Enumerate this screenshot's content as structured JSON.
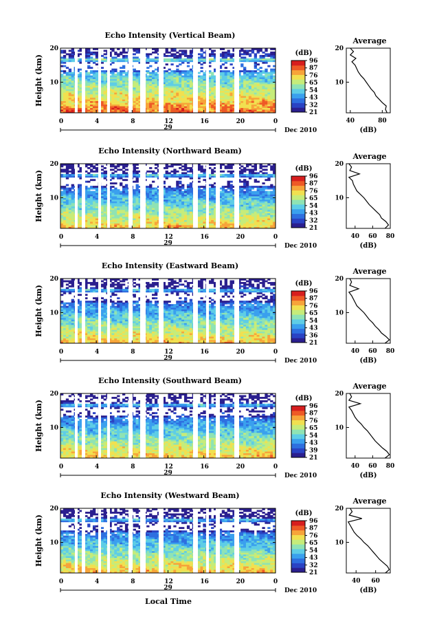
{
  "colors": {
    "colormap": [
      "#2b1f8f",
      "#2a43c4",
      "#2e6fe0",
      "#3aa0ee",
      "#5ecde6",
      "#8fe3b4",
      "#c6ec7a",
      "#f1e050",
      "#f7a43a",
      "#ee5a26",
      "#d71e1e"
    ],
    "curve": "#000000",
    "axis": "#000000",
    "gap": "#ffffff"
  },
  "figure": {
    "bottom_label": "Local Time"
  },
  "chart_data": [
    {
      "type": "heatmap",
      "title": "Echo Intensity (Vertical Beam)",
      "ylabel": "Height (km)",
      "xticks": [
        "0",
        "4",
        "8",
        "12",
        "16",
        "20",
        "0"
      ],
      "ytick_labels": [
        "20",
        "10"
      ],
      "date_day": "29",
      "date_label": "Dec 2010",
      "xlim": [
        0,
        24
      ],
      "ylim": [
        1,
        20
      ],
      "colorbar": {
        "unit": "(dB)",
        "labels": [
          "96",
          "87",
          "76",
          "65",
          "54",
          "43",
          "32",
          "21"
        ],
        "range": [
          21,
          96
        ]
      },
      "profile": {
        "title": "Average",
        "xlabel": "(dB)",
        "xticks": [
          "40",
          "80"
        ],
        "xlim": [
          35,
          90
        ],
        "yticks": [
          "20",
          "10"
        ],
        "height": [
          1,
          2,
          3,
          4,
          5,
          6,
          7,
          8,
          9,
          10,
          11,
          12,
          13,
          14,
          15,
          16,
          17,
          18,
          19,
          20
        ],
        "db": [
          86,
          84,
          85,
          80,
          76,
          72,
          70,
          66,
          63,
          60,
          57,
          53,
          50,
          48,
          46,
          42,
          47,
          40,
          44,
          40
        ]
      }
    },
    {
      "type": "heatmap",
      "title": "Echo Intensity (Northward Beam)",
      "ylabel": "Height (km)",
      "xticks": [
        "0",
        "4",
        "8",
        "12",
        "16",
        "20",
        "0"
      ],
      "ytick_labels": [
        "20",
        "10"
      ],
      "date_day": "29",
      "date_label": "Dec 2010",
      "xlim": [
        0,
        24
      ],
      "ylim": [
        1,
        20
      ],
      "colorbar": {
        "unit": "(dB)",
        "labels": [
          "96",
          "87",
          "76",
          "65",
          "54",
          "43",
          "32",
          "21"
        ],
        "range": [
          21,
          96
        ]
      },
      "profile": {
        "title": "Average",
        "xlabel": "(dB)",
        "xticks": [
          "40",
          "60",
          "80"
        ],
        "xlim": [
          30,
          80
        ],
        "yticks": [
          "20",
          "10"
        ],
        "height": [
          1,
          2,
          3,
          4,
          5,
          6,
          7,
          8,
          9,
          10,
          11,
          12,
          13,
          14,
          15,
          16,
          17,
          18,
          19,
          20
        ],
        "db": [
          74,
          78,
          75,
          70,
          68,
          64,
          60,
          56,
          53,
          50,
          46,
          42,
          40,
          38,
          37,
          33,
          45,
          34,
          36,
          33
        ]
      }
    },
    {
      "type": "heatmap",
      "title": "Echo Intensity (Eastward Beam)",
      "ylabel": "Height (km)",
      "xticks": [
        "0",
        "4",
        "8",
        "12",
        "16",
        "20",
        "0"
      ],
      "ytick_labels": [
        "20",
        "10"
      ],
      "date_day": "29",
      "date_label": "Dec 2010",
      "xlim": [
        0,
        24
      ],
      "ylim": [
        1,
        20
      ],
      "colorbar": {
        "unit": "(dB)",
        "labels": [
          "96",
          "87",
          "76",
          "65",
          "54",
          "43",
          "36",
          "21"
        ],
        "range": [
          21,
          96
        ]
      },
      "profile": {
        "title": "Average",
        "xlabel": "(dB)",
        "xticks": [
          "40",
          "60",
          "80"
        ],
        "xlim": [
          30,
          80
        ],
        "yticks": [
          "20",
          "10"
        ],
        "height": [
          1,
          2,
          3,
          4,
          5,
          6,
          7,
          8,
          9,
          10,
          11,
          12,
          13,
          14,
          15,
          16,
          17,
          18,
          19,
          20
        ],
        "db": [
          74,
          79,
          75,
          70,
          67,
          63,
          60,
          56,
          53,
          50,
          46,
          42,
          40,
          38,
          36,
          33,
          44,
          34,
          36,
          34
        ]
      }
    },
    {
      "type": "heatmap",
      "title": "Echo Intensity (Southward Beam)",
      "ylabel": "Height (km)",
      "xticks": [
        "0",
        "4",
        "8",
        "12",
        "16",
        "20",
        "0"
      ],
      "ytick_labels": [
        "20",
        "10"
      ],
      "date_day": "29",
      "date_label": "Dec 2010",
      "xlim": [
        0,
        24
      ],
      "ylim": [
        1,
        20
      ],
      "colorbar": {
        "unit": "(dB)",
        "labels": [
          "96",
          "87",
          "76",
          "65",
          "54",
          "43",
          "39",
          "21"
        ],
        "range": [
          21,
          96
        ]
      },
      "profile": {
        "title": "Average",
        "xlabel": "(dB)",
        "xticks": [
          "40",
          "60",
          "80"
        ],
        "xlim": [
          30,
          80
        ],
        "yticks": [
          "20",
          "10"
        ],
        "height": [
          1,
          2,
          3,
          4,
          5,
          6,
          7,
          8,
          9,
          10,
          11,
          12,
          13,
          14,
          15,
          16,
          17,
          18,
          19,
          20
        ],
        "db": [
          74,
          79,
          76,
          71,
          67,
          63,
          60,
          57,
          54,
          50,
          47,
          43,
          40,
          38,
          36,
          33,
          46,
          33,
          36,
          34
        ]
      }
    },
    {
      "type": "heatmap",
      "title": "Echo Intensity (Westward Beam)",
      "ylabel": "Height (km)",
      "xticks": [
        "0",
        "4",
        "8",
        "12",
        "16",
        "20",
        "0"
      ],
      "ytick_labels": [
        "20",
        "10"
      ],
      "date_day": "29",
      "date_label": "Dec 2010",
      "xlim": [
        0,
        24
      ],
      "ylim": [
        1,
        20
      ],
      "colorbar": {
        "unit": "(dB)",
        "labels": [
          "96",
          "87",
          "76",
          "65",
          "54",
          "43",
          "32",
          "21"
        ],
        "range": [
          21,
          96
        ]
      },
      "profile": {
        "title": "Average",
        "xlabel": "(dB)",
        "xticks": [
          "40",
          "60"
        ],
        "xlim": [
          30,
          75
        ],
        "yticks": [
          "20",
          "10"
        ],
        "height": [
          1,
          2,
          3,
          4,
          5,
          6,
          7,
          8,
          9,
          10,
          11,
          12,
          13,
          14,
          15,
          16,
          17,
          18,
          19,
          20
        ],
        "db": [
          70,
          74,
          72,
          68,
          64,
          61,
          58,
          55,
          52,
          48,
          45,
          41,
          38,
          36,
          34,
          32,
          46,
          33,
          36,
          34
        ]
      }
    }
  ]
}
